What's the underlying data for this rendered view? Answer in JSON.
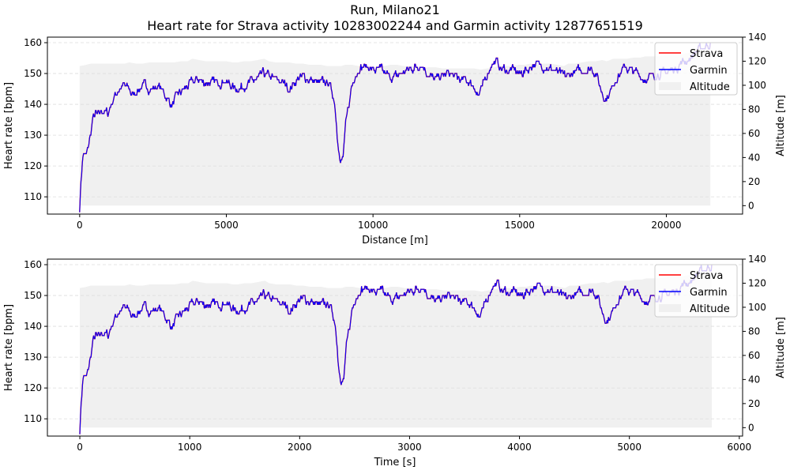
{
  "figure": {
    "title_line1": "Run, Milano21",
    "title_line2": "Heart rate for Strava activity 10283002244 and Garmin activity 12877651519"
  },
  "colors": {
    "strava": "#ff0000",
    "garmin": "#0000ff",
    "altitude_fill": "#f0f0f0",
    "grid": "#dddddd"
  },
  "legend": {
    "strava": "Strava",
    "garmin": "Garmin",
    "altitude": "Altitude",
    "placement": "top-right"
  },
  "hr_profile": [
    [
      0,
      106
    ],
    [
      2,
      115
    ],
    [
      4,
      121
    ],
    [
      6,
      124
    ],
    [
      10,
      123
    ],
    [
      13,
      126
    ],
    [
      17,
      131
    ],
    [
      20,
      135
    ],
    [
      24,
      137
    ],
    [
      29,
      136
    ],
    [
      33,
      138
    ],
    [
      38,
      138
    ],
    [
      43,
      137
    ],
    [
      48,
      140
    ],
    [
      54,
      143
    ],
    [
      60,
      145
    ],
    [
      67,
      146
    ],
    [
      74,
      145
    ],
    [
      82,
      143
    ],
    [
      90,
      145
    ],
    [
      100,
      146
    ],
    [
      110,
      145
    ],
    [
      120,
      146
    ],
    [
      130,
      143
    ],
    [
      140,
      140
    ],
    [
      150,
      143
    ],
    [
      160,
      145
    ],
    [
      170,
      147
    ],
    [
      180,
      148
    ],
    [
      190,
      147
    ],
    [
      200,
      147
    ],
    [
      210,
      147
    ],
    [
      220,
      148
    ],
    [
      230,
      146
    ],
    [
      240,
      145
    ],
    [
      250,
      146
    ],
    [
      260,
      147
    ],
    [
      270,
      148
    ],
    [
      280,
      150
    ],
    [
      290,
      149
    ],
    [
      300,
      148
    ],
    [
      310,
      147
    ],
    [
      320,
      145
    ],
    [
      330,
      148
    ],
    [
      340,
      149
    ],
    [
      350,
      148
    ],
    [
      360,
      147
    ],
    [
      370,
      147
    ],
    [
      380,
      147
    ],
    [
      388,
      141
    ],
    [
      392,
      131
    ],
    [
      397,
      121
    ],
    [
      401,
      123
    ],
    [
      405,
      133
    ],
    [
      410,
      140
    ],
    [
      414,
      146
    ],
    [
      420,
      150
    ],
    [
      427,
      152
    ],
    [
      433,
      152
    ],
    [
      440,
      152
    ],
    [
      450,
      151
    ],
    [
      460,
      151
    ],
    [
      470,
      149
    ],
    [
      480,
      149
    ],
    [
      490,
      150
    ],
    [
      500,
      151
    ],
    [
      510,
      152
    ],
    [
      520,
      153
    ],
    [
      530,
      150
    ],
    [
      540,
      148
    ],
    [
      550,
      149
    ],
    [
      560,
      150
    ],
    [
      570,
      149
    ],
    [
      580,
      148
    ],
    [
      590,
      148
    ],
    [
      600,
      146
    ],
    [
      607,
      143
    ],
    [
      613,
      145
    ],
    [
      620,
      150
    ],
    [
      627,
      153
    ],
    [
      633,
      154
    ],
    [
      640,
      152
    ],
    [
      650,
      151
    ],
    [
      660,
      151
    ],
    [
      670,
      150
    ],
    [
      680,
      151
    ],
    [
      690,
      153
    ],
    [
      700,
      153
    ],
    [
      710,
      152
    ],
    [
      720,
      151
    ],
    [
      730,
      150
    ],
    [
      740,
      149
    ],
    [
      750,
      150
    ],
    [
      760,
      151
    ],
    [
      770,
      151
    ],
    [
      780,
      152
    ],
    [
      786,
      150
    ],
    [
      793,
      145
    ],
    [
      800,
      142
    ],
    [
      808,
      144
    ],
    [
      815,
      148
    ],
    [
      823,
      150
    ],
    [
      830,
      152
    ],
    [
      840,
      151
    ],
    [
      850,
      150
    ],
    [
      860,
      148
    ],
    [
      870,
      149
    ],
    [
      880,
      150
    ],
    [
      890,
      150
    ],
    [
      900,
      151
    ],
    [
      910,
      152
    ],
    [
      920,
      154
    ],
    [
      930,
      155
    ],
    [
      938,
      157
    ],
    [
      945,
      158
    ],
    [
      953,
      159
    ],
    [
      960,
      160
    ]
  ],
  "altitude_profile": [
    [
      0,
      116
    ],
    [
      3,
      117
    ],
    [
      5,
      118
    ],
    [
      8,
      118
    ],
    [
      11,
      118
    ],
    [
      14,
      118
    ],
    [
      17,
      118
    ],
    [
      20,
      118
    ],
    [
      22,
      119
    ],
    [
      25,
      118
    ],
    [
      28,
      118
    ],
    [
      31,
      119
    ],
    [
      34,
      119
    ],
    [
      37,
      119
    ],
    [
      39,
      119
    ],
    [
      42,
      119
    ],
    [
      45,
      120
    ],
    [
      48,
      120
    ],
    [
      50,
      122
    ],
    [
      53,
      121
    ],
    [
      56,
      120
    ],
    [
      59,
      120
    ],
    [
      62,
      120
    ],
    [
      65,
      120
    ],
    [
      68,
      119
    ],
    [
      70,
      119
    ],
    [
      73,
      120
    ],
    [
      76,
      120
    ],
    [
      79,
      121
    ],
    [
      82,
      122
    ],
    [
      84,
      120
    ],
    [
      87,
      119
    ],
    [
      90,
      119
    ],
    [
      93,
      119
    ],
    [
      96,
      118
    ],
    [
      99,
      118
    ],
    [
      102,
      117
    ],
    [
      104,
      117
    ],
    [
      107,
      117
    ],
    [
      110,
      116
    ],
    [
      113,
      116
    ],
    [
      116,
      116
    ],
    [
      118,
      117
    ],
    [
      121,
      117
    ],
    [
      124,
      116
    ],
    [
      127,
      116
    ],
    [
      130,
      115
    ],
    [
      133,
      116
    ],
    [
      135,
      116
    ],
    [
      138,
      117
    ],
    [
      141,
      117
    ],
    [
      144,
      116
    ],
    [
      147,
      116
    ],
    [
      150,
      115
    ],
    [
      152,
      114
    ],
    [
      155,
      115
    ],
    [
      158,
      115
    ],
    [
      161,
      114
    ],
    [
      164,
      114
    ],
    [
      167,
      114
    ],
    [
      169,
      114
    ],
    [
      172,
      114
    ],
    [
      175,
      114
    ],
    [
      178,
      113
    ],
    [
      181,
      114
    ],
    [
      184,
      115
    ],
    [
      186,
      116
    ],
    [
      189,
      116
    ],
    [
      192,
      116
    ],
    [
      195,
      117
    ],
    [
      198,
      117
    ],
    [
      200,
      118
    ],
    [
      203,
      117
    ],
    [
      206,
      118
    ],
    [
      209,
      118
    ],
    [
      212,
      117
    ],
    [
      215,
      116
    ],
    [
      217,
      118
    ],
    [
      220,
      118
    ],
    [
      223,
      119
    ],
    [
      226,
      120
    ],
    [
      229,
      120
    ],
    [
      232,
      121
    ],
    [
      234,
      120
    ],
    [
      237,
      122
    ],
    [
      240,
      122
    ],
    [
      243,
      122
    ],
    [
      246,
      123
    ],
    [
      249,
      123
    ],
    [
      251,
      124
    ],
    [
      254,
      124
    ],
    [
      257,
      124
    ],
    [
      260,
      125
    ],
    [
      263,
      125
    ],
    [
      266,
      125
    ],
    [
      268,
      126
    ],
    [
      271,
      127
    ],
    [
      274,
      128
    ],
    [
      277,
      129
    ],
    [
      280,
      130
    ]
  ],
  "panels": [
    {
      "chart_data": {
        "type": "line",
        "x_quantity": "distance",
        "xlabel": "Distance [m]",
        "ylabel_left": "Heart rate [bpm]",
        "ylabel_right": "Altitude [m]",
        "x_total": 21500,
        "xlim": [
          -1100,
          22600
        ],
        "ylim_left": [
          104.4,
          161.8
        ],
        "ylim_right": [
          -7,
          140
        ],
        "xticks": [
          0,
          5000,
          10000,
          15000,
          20000
        ],
        "xtick_labels": [
          "0",
          "5000",
          "10000",
          "15000",
          "20000"
        ],
        "yticks_left": [
          110,
          120,
          130,
          140,
          150,
          160
        ],
        "ytick_labels_left": [
          "110",
          "120",
          "130",
          "140",
          "150",
          "160"
        ],
        "yticks_right": [
          0,
          20,
          40,
          60,
          80,
          100,
          120,
          140
        ],
        "ytick_labels_right": [
          "0",
          "20",
          "40",
          "60",
          "80",
          "100",
          "120",
          "140"
        ],
        "grid": "horizontal dashed",
        "series": [
          {
            "name": "Strava",
            "values": "hr_profile"
          },
          {
            "name": "Garmin",
            "values": "hr_profile"
          },
          {
            "name": "Altitude",
            "values": "altitude_profile",
            "style": "filled area"
          }
        ]
      }
    },
    {
      "chart_data": {
        "type": "line",
        "x_quantity": "time",
        "xlabel": "Time [s]",
        "ylabel_left": "Heart rate [bpm]",
        "ylabel_right": "Altitude [m]",
        "x_total": 5750,
        "xlim": [
          -295,
          6030
        ],
        "ylim_left": [
          104.4,
          161.8
        ],
        "ylim_right": [
          -7,
          140
        ],
        "xticks": [
          0,
          1000,
          2000,
          3000,
          4000,
          5000,
          6000
        ],
        "xtick_labels": [
          "0",
          "1000",
          "2000",
          "3000",
          "4000",
          "5000",
          "6000"
        ],
        "yticks_left": [
          110,
          120,
          130,
          140,
          150,
          160
        ],
        "ytick_labels_left": [
          "110",
          "120",
          "130",
          "140",
          "150",
          "160"
        ],
        "yticks_right": [
          0,
          20,
          40,
          60,
          80,
          100,
          120,
          140
        ],
        "ytick_labels_right": [
          "0",
          "20",
          "40",
          "60",
          "80",
          "100",
          "120",
          "140"
        ],
        "grid": "horizontal dashed",
        "series": [
          {
            "name": "Strava",
            "values": "hr_profile"
          },
          {
            "name": "Garmin",
            "values": "hr_profile"
          },
          {
            "name": "Altitude",
            "values": "altitude_profile",
            "style": "filled area"
          }
        ]
      }
    }
  ]
}
